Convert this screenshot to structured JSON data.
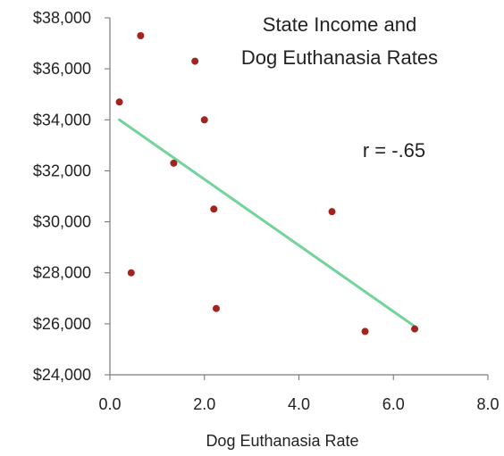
{
  "chart_data": {
    "type": "scatter",
    "title_lines": [
      "State Income and",
      "Dog Euthanasia Rates"
    ],
    "xlabel": "Dog Euthanasia Rate",
    "ylabel": "",
    "xlim": [
      0,
      8.0
    ],
    "ylim": [
      24000,
      38000
    ],
    "x_ticks": [
      0.0,
      2.0,
      4.0,
      6.0,
      8.0
    ],
    "x_tick_labels": [
      "0.0",
      "2.0",
      "4.0",
      "6.0",
      "8.0"
    ],
    "y_ticks": [
      24000,
      26000,
      28000,
      30000,
      32000,
      34000,
      36000,
      38000
    ],
    "y_tick_labels": [
      "$24,000",
      "$26,000",
      "$28,000",
      "$30,000",
      "$32,000",
      "$34,000",
      "$36,000",
      "$38,000"
    ],
    "grid": false,
    "points": [
      {
        "x": 0.2,
        "y": 34700
      },
      {
        "x": 0.45,
        "y": 28000
      },
      {
        "x": 0.65,
        "y": 37300
      },
      {
        "x": 1.35,
        "y": 32300
      },
      {
        "x": 1.8,
        "y": 36300
      },
      {
        "x": 2.0,
        "y": 34000
      },
      {
        "x": 2.2,
        "y": 30500
      },
      {
        "x": 2.25,
        "y": 26600
      },
      {
        "x": 4.7,
        "y": 30400
      },
      {
        "x": 5.4,
        "y": 25700
      },
      {
        "x": 6.45,
        "y": 25800
      }
    ],
    "trendline": {
      "start": {
        "x": 0.2,
        "y": 34000
      },
      "end": {
        "x": 6.45,
        "y": 25900
      }
    },
    "annotation": "r = -.65",
    "colors": {
      "points": "#a3231f",
      "trendline": "#74d39a",
      "axis": "#7a7a7a",
      "text": "#222222"
    }
  }
}
